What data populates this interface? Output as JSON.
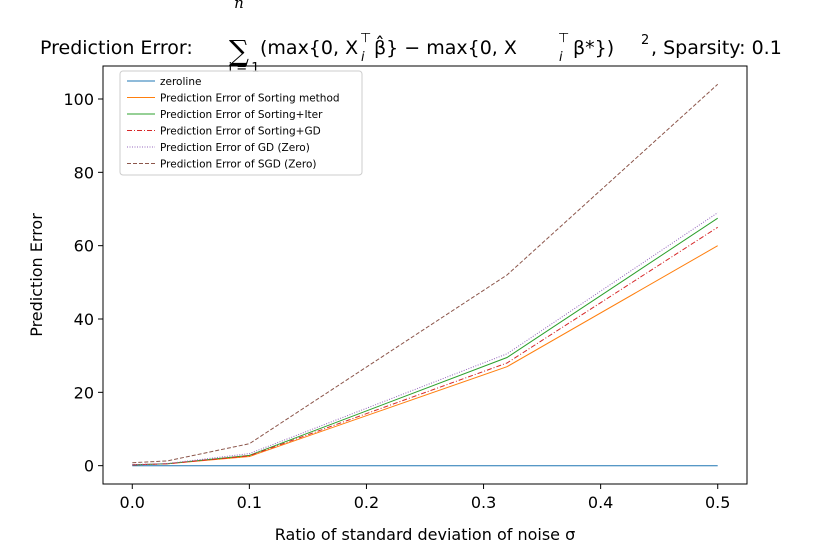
{
  "chart_data": {
    "type": "line",
    "title_prefix": "Prediction Error:",
    "title_formula": "(max{0, X",
    "title_formula_mid": "β̂} − max{0, X",
    "title_formula_end": "β*})",
    "title_sup": "2",
    "title_suffix": ", Sparsity: 0.1",
    "title_sum_symbol": "∑",
    "title_sum_top": "n",
    "title_sum_bottom": "i = 1",
    "title_sub_i": "i",
    "title_transpose": "⊤",
    "xlabel": "Ratio of standard deviation of noise σ",
    "ylabel": "Prediction Error",
    "xlim": [
      -0.025,
      0.525
    ],
    "ylim": [
      -5,
      109
    ],
    "xticks": [
      0.0,
      0.1,
      0.2,
      0.3,
      0.4,
      0.5
    ],
    "xtick_labels": [
      "0.0",
      "0.1",
      "0.2",
      "0.3",
      "0.4",
      "0.5"
    ],
    "yticks": [
      0,
      20,
      40,
      60,
      80,
      100
    ],
    "ytick_labels": [
      "0",
      "20",
      "40",
      "60",
      "80",
      "100"
    ],
    "x": [
      0.0,
      0.03,
      0.1,
      0.32,
      0.5
    ],
    "series": [
      {
        "name": "zeroline",
        "color": "#1f77b4",
        "dash": "solid",
        "values": [
          0,
          0,
          0,
          0,
          0
        ]
      },
      {
        "name": "Prediction Error of Sorting method",
        "color": "#ff7f0e",
        "dash": "solid",
        "values": [
          0.2,
          0.5,
          2.5,
          27,
          60
        ]
      },
      {
        "name": "Prediction Error of Sorting+Iter",
        "color": "#2ca02c",
        "dash": "solid",
        "values": [
          0.2,
          0.5,
          2.8,
          29.5,
          67.5
        ]
      },
      {
        "name": "Prediction Error of Sorting+GD",
        "color": "#d62728",
        "dash": "dashdot",
        "values": [
          0.2,
          0.5,
          2.7,
          28,
          65
        ]
      },
      {
        "name": "Prediction Error of GD (Zero)",
        "color": "#9467bd",
        "dash": "dotted",
        "values": [
          0.3,
          0.6,
          3.3,
          30.5,
          69
        ]
      },
      {
        "name": "Prediction Error of SGD (Zero)",
        "color": "#8c564b",
        "dash": "dashed",
        "values": [
          0.8,
          1.3,
          6,
          52,
          104
        ]
      }
    ],
    "legend_position": "upper-left",
    "grid": false
  }
}
